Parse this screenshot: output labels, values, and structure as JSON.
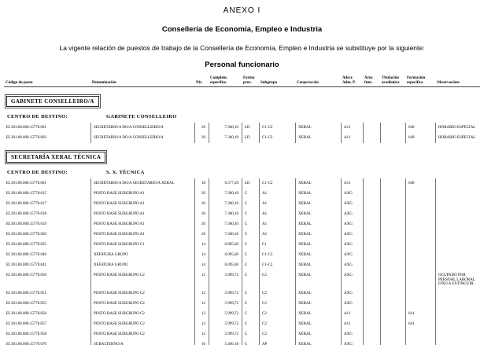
{
  "page": {
    "title": "ANEXO I",
    "subtitle": "Consellería de Economía, Empleo e Industria",
    "intro": "La vigente relación de puestos de trabajo de la Consellería de Economía, Empleo e Industria se substituye por la siguiente:",
    "table_title": "Personal funcionario"
  },
  "colors": {
    "text": "#000000",
    "rule": "#777777",
    "background": "#ffffff"
  },
  "table": {
    "columns": [
      {
        "line1": "",
        "line2": "Código do posto"
      },
      {
        "line1": "",
        "line2": "Denominación"
      },
      {
        "line1": "",
        "line2": "Niv."
      },
      {
        "line1": "Complem.",
        "line2": "específico"
      },
      {
        "line1": "Forma",
        "line2": "prov."
      },
      {
        "line1": "",
        "line2": "Subgrupo"
      },
      {
        "line1": "",
        "line2": "Corpo/escala"
      },
      {
        "line1": "Adscr.",
        "line2": "Adm. P."
      },
      {
        "line1": "Área",
        "line2": "func."
      },
      {
        "line1": "Titulación",
        "line2": "académica"
      },
      {
        "line1": "Formación",
        "line2": "específica"
      },
      {
        "line1": "",
        "line2": "Observacións"
      }
    ],
    "sections": [
      {
        "box_title": "GABINETE CONSELLEIRO/A",
        "centro_label": "CENTRO DE DESTINO:",
        "centro_value": "GABINETE CONSELLEIRO",
        "rows": [
          [
            "EI.301.00.000.15770.001",
            "SECRETARIO/A DO/A CONSELLEIRO/A",
            "20",
            "7.360,10",
            "LD",
            "C1-C2",
            "XERAL",
            "A11",
            "",
            "",
            "640",
            "HORARIO ESPECIAL"
          ],
          [
            "EI.301.00.000.15770.002",
            "SECRETARIO/A DO/A CONSELLEIRO/A",
            "20",
            "7.360,10",
            "LD",
            "C1-C2",
            "XERAL",
            "A11",
            "",
            "",
            "640",
            "HORARIO ESPECIAL"
          ]
        ]
      },
      {
        "box_title": "SECRETARÍA XERAL TÉCNICA",
        "centro_label": "CENTRO DE DESTINO:",
        "centro_value": "S. X. TÉCNICA",
        "rows": [
          [
            "EI.301.00.000.15770.001",
            "SECRETARIO/A DO/A SECRETARIO/A XERAL",
            "18",
            "6.577,20",
            "LD",
            "C1-C2",
            "XERAL",
            "A11",
            "",
            "",
            "640",
            ""
          ],
          [
            "EI.301.00.000.15770.015",
            "POSTO BASE SUBGRUPO A1",
            "20",
            "7.360,10",
            "C",
            "A1",
            "XERAL",
            "AXG",
            "",
            "",
            "",
            ""
          ],
          [
            "EI.301.00.000.15770.017",
            "POSTO BASE SUBGRUPO A1",
            "20",
            "7.360,10",
            "C",
            "A1",
            "XERAL",
            "AXG",
            "",
            "",
            "",
            ""
          ],
          [
            "EI.301.00.000.15770.018",
            "POSTO BASE SUBGRUPO A1",
            "20",
            "7.360,10",
            "C",
            "A1",
            "XERAL",
            "AXG",
            "",
            "",
            "",
            ""
          ],
          [
            "EI.301.00.000.15770.019",
            "POSTO BASE SUBGRUPO A1",
            "20",
            "7.360,10",
            "C",
            "A1",
            "XERAL",
            "AXG",
            "",
            "",
            "",
            ""
          ],
          [
            "EI.301.00.000.15770.020",
            "POSTO BASE SUBGRUPO A1",
            "20",
            "7.360,10",
            "C",
            "A1",
            "XERAL",
            "AXG",
            "",
            "",
            "",
            ""
          ],
          [
            "EI.301.00.000.15770.035",
            "POSTO BASE SUBGRUPO C1",
            "14",
            "6.095,60",
            "C",
            "C1",
            "XERAL",
            "AXG",
            "",
            "",
            "",
            ""
          ],
          [
            "EI.301.00.000.15770.040",
            "XEFATURA GRUPO",
            "14",
            "6.095,60",
            "C",
            "C1-C2",
            "XERAL",
            "AXG",
            "",
            "",
            "",
            ""
          ],
          [
            "EI.301.00.000.15770.041",
            "XEFATURA GRUPO",
            "14",
            "6.095,60",
            "C",
            "C1-C2",
            "XERAL",
            "AXG",
            "",
            "",
            "",
            ""
          ],
          [
            "EI.301.00.000.15770.050",
            "POSTO BASE SUBGRUPO C2",
            "12",
            "5.999,72",
            "C",
            "C2",
            "XERAL",
            "AXG",
            "",
            "",
            "",
            "OCUPADO POR PERSOAL LABORAL FIXO A EXTINGUIR."
          ],
          [
            "EI.301.00.000.15770.051",
            "POSTO BASE SUBGRUPO C2",
            "12",
            "5.999,72",
            "C",
            "C2",
            "XERAL",
            "AXG",
            "",
            "",
            "",
            ""
          ],
          [
            "EI.301.00.000.15770.055",
            "POSTO BASE SUBGRUPO C2",
            "12",
            "5.999,72",
            "C",
            "C2",
            "XERAL",
            "AXG",
            "",
            "",
            "",
            ""
          ],
          [
            "EI.301.00.000.15770.056",
            "POSTO BASE SUBGRUPO C2",
            "12",
            "5.999,72",
            "C",
            "C2",
            "XERAL",
            "A11",
            "",
            "",
            "641",
            ""
          ],
          [
            "EI.301.00.000.15770.057",
            "POSTO BASE SUBGRUPO C2",
            "12",
            "5.999,72",
            "C",
            "C2",
            "XERAL",
            "A11",
            "",
            "",
            "641",
            ""
          ],
          [
            "EI.301.00.000.15770.058",
            "POSTO BASE SUBGRUPO C2",
            "12",
            "5.999,72",
            "C",
            "C2",
            "XERAL",
            "AXG",
            "",
            "",
            "",
            ""
          ],
          [
            "EI.301.00.000.15770.070",
            "SUBALTERNO/A",
            "10",
            "5.496,18",
            "C",
            "AP",
            "XERAL",
            "AXG",
            "",
            "",
            "",
            ""
          ]
        ]
      }
    ]
  }
}
